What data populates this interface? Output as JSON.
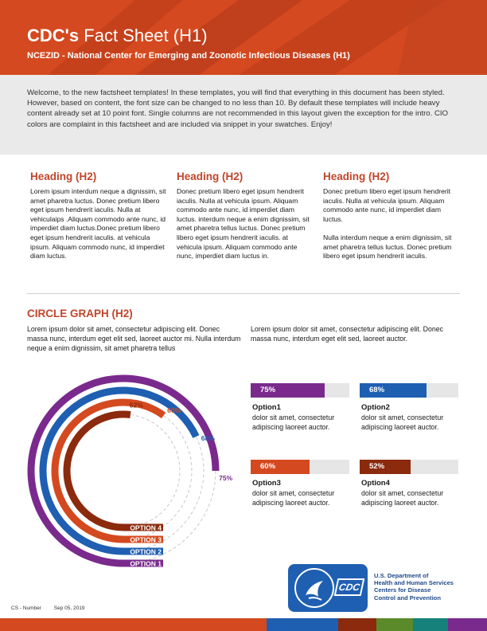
{
  "header": {
    "title_bold": "CDC's",
    "title_rest": "Fact Sheet (H1)",
    "subtitle": "NCEZID - National Center for Emerging and Zoonotic Infectious Diseases (H1)"
  },
  "intro": "Welcome, to the new factsheet templates! In these templates, you will find that everything in this document has been styled. However, based on content, the font size can be changed to no less than 10. By default these templates will include heavy content already set at 10 point font. Single columns are not recommended in this layout given the exception for the intro. CIO colors are complaint in this factsheet and are included via snippet in your swatches. Enjoy!",
  "columns": [
    {
      "heading": "Heading (H2)",
      "paragraphs": [
        "Lorem ipsum interdum neque a dignissim, sit amet pharetra luctus. Donec pretium libero eget ipsum hendrerit iaculis. Nulla at vehiculaips .Aliquam commodo ante nunc, id imperdiet diam luctus.Donec pretium libero eget ipsum hendrerit iaculis. at vehicula ipsum. Aliquam commodo nunc, id imperdiet diam luctus."
      ]
    },
    {
      "heading": "Heading (H2)",
      "paragraphs": [
        "Donec pretium libero eget ipsum hendrerit iaculis. Nulla at vehicula ipsum. Aliquam commodo ante nunc, id imperdiet diam luctus. interdum neque a enim dignissim, sit amet pharetra tellus luctus. Donec pretium libero eget ipsum hendrerit iaculis. at vehicula ipsum. Aliquam commodo ante nunc, imperdiet diam luctus in."
      ]
    },
    {
      "heading": "Heading (H2)",
      "paragraphs": [
        "Donec pretium libero eget ipsum hendrerit iaculis. Nulla at vehicula ipsum. Aliquam commodo ante nunc, id imperdiet diam luctus.",
        "Nulla interdum neque a enim dignissim, sit amet pharetra tellus luctus. Donec pretium libero eget ipsum hendrerit iaculis."
      ]
    }
  ],
  "circle_section": {
    "heading": "CIRCLE GRAPH (H2)",
    "text_left": "Lorem ipsum dolor sit amet, consectetur adipiscing elit. Donec massa nunc, interdum eget elit sed, laoreet auctor mi. Nulla interdum neque a enim dignissim, sit amet pharetra tellus",
    "text_right": "Lorem ipsum dolor sit amet, consectetur adipiscing elit. Donec massa nunc, interdum eget elit sed, laoreet auctor."
  },
  "chart_data": {
    "type": "radial-bar",
    "categories": [
      "OPTION 1",
      "OPTION 2",
      "OPTION 3",
      "OPTION 4"
    ],
    "values": [
      75,
      68,
      60,
      52
    ],
    "value_labels": [
      "75%",
      "68%",
      "60%",
      "52%"
    ],
    "colors": [
      "#7a2a8c",
      "#1f5fb2",
      "#d4491f",
      "#8c2a0e"
    ]
  },
  "options": [
    {
      "percent": 75,
      "percent_label": "75%",
      "name": "Option1",
      "description": "dolor sit amet, consectetur adipiscing laoreet auctor.",
      "color": "#7a2a8c"
    },
    {
      "percent": 68,
      "percent_label": "68%",
      "name": "Option2",
      "description": "dolor sit amet, consectetur adipiscing laoreet auctor.",
      "color": "#1f5fb2"
    },
    {
      "percent": 60,
      "percent_label": "60%",
      "name": "Option3",
      "description": "dolor sit amet, consectetur adipiscing laoreet auctor.",
      "color": "#d4491f"
    },
    {
      "percent": 52,
      "percent_label": "52%",
      "name": "Option4",
      "description": "dolor sit amet, consectetur adipiscing laoreet auctor.",
      "color": "#8c2a0e"
    }
  ],
  "logo": {
    "cdc_text": "CDC",
    "hhs_lines": [
      "U.S. Department of",
      "Health and Human Services",
      "Centers for Disease",
      "Control and Prevention"
    ]
  },
  "footer": {
    "number": "CS - Number",
    "date": "Sep 05, 2019"
  },
  "colors": {
    "banner": "#d4491f",
    "heading": "#c1452a",
    "purple": "#7a2a8c",
    "blue": "#1f5fb2",
    "orange": "#d4491f",
    "brown": "#8c2a0e",
    "green": "#5a8a2a",
    "teal": "#16807a"
  }
}
